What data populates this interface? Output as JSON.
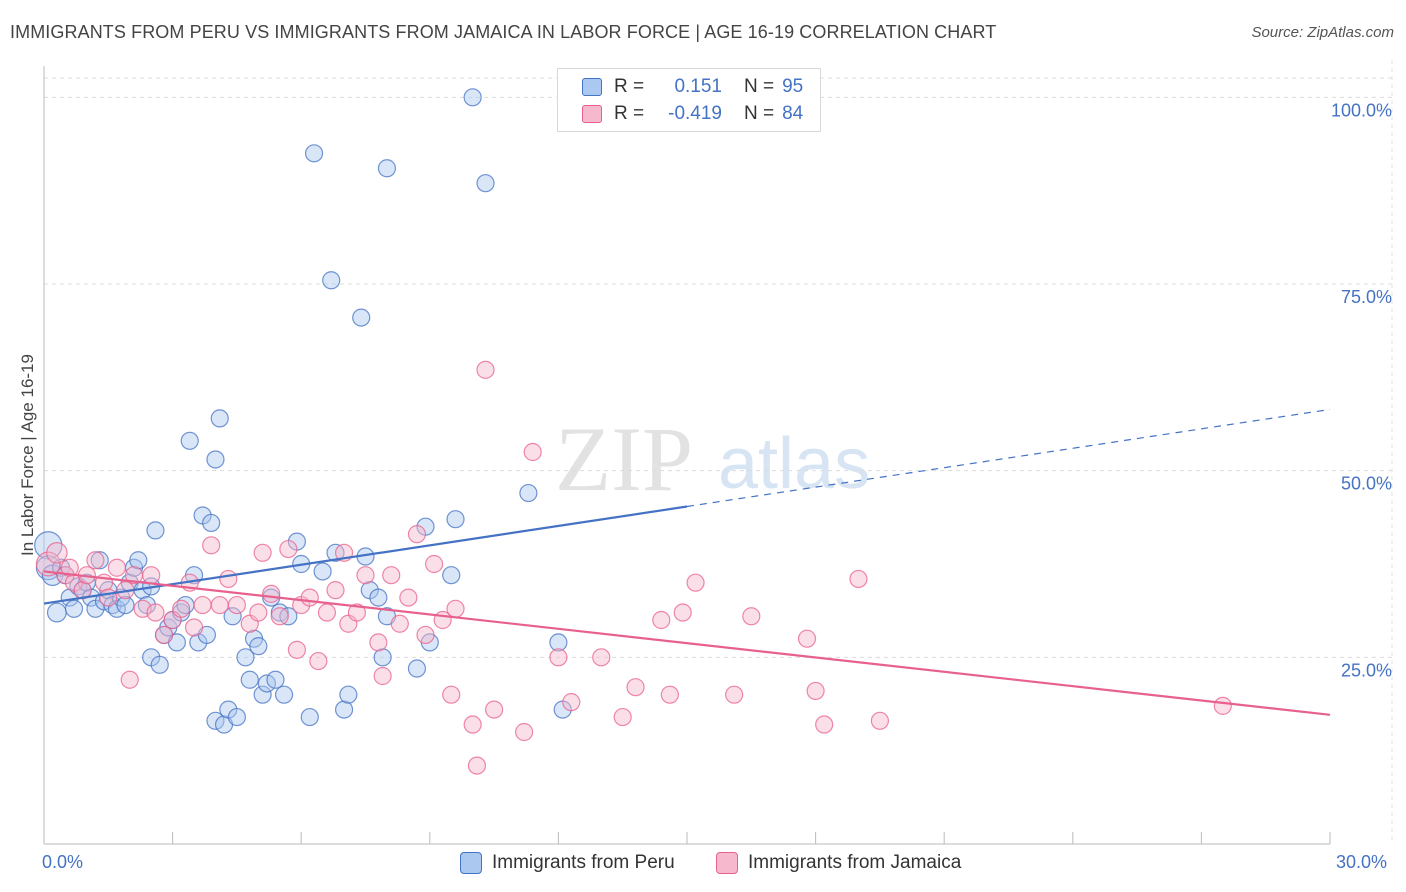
{
  "title": "IMMIGRANTS FROM PERU VS IMMIGRANTS FROM JAMAICA IN LABOR FORCE | AGE 16-19 CORRELATION CHART",
  "source": "Source: ZipAtlas.com",
  "watermark": {
    "zip": "ZIP",
    "atlas": "atlas"
  },
  "legend_top": {
    "rows": [
      {
        "r_label": "R =",
        "r_value": "0.151",
        "n_label": "N =",
        "n_value": "95"
      },
      {
        "r_label": "R =",
        "r_value": "-0.419",
        "n_label": "N =",
        "n_value": "84"
      }
    ]
  },
  "x_axis": {
    "min_label": "0.0%",
    "max_label": "30.0%"
  },
  "chart_data": {
    "type": "scatter",
    "title": "IMMIGRANTS FROM PERU VS IMMIGRANTS FROM JAMAICA IN LABOR FORCE | AGE 16-19 CORRELATION CHART",
    "xlabel": "",
    "ylabel": "In Labor Force | Age 16-19",
    "xlim": [
      0,
      30
    ],
    "ylim": [
      0,
      105
    ],
    "y_ticks": [
      {
        "value": 25,
        "label": "25.0%"
      },
      {
        "value": 50,
        "label": "50.0%"
      },
      {
        "value": 75,
        "label": "75.0%"
      },
      {
        "value": 100,
        "label": "100.0%"
      }
    ],
    "x_ticks": [
      0,
      3,
      6,
      9,
      12,
      15,
      18,
      21,
      24,
      27,
      30
    ],
    "series": [
      {
        "name": "Immigrants from Peru",
        "color": "#4472c4",
        "fill": "#aac8f0",
        "r": 0.151,
        "n": 95,
        "trend": {
          "x0": 0,
          "y0": 32.2,
          "x1": 15,
          "y1": 45.2,
          "dash_x1": 30,
          "dash_y1": 58.2
        },
        "points": [
          [
            0.1,
            40,
            1.6
          ],
          [
            0.1,
            37,
            1.4
          ],
          [
            0.2,
            36,
            1.2
          ],
          [
            0.3,
            31,
            1.1
          ],
          [
            0.4,
            37,
            1
          ],
          [
            0.5,
            36,
            1
          ],
          [
            0.6,
            33,
            1
          ],
          [
            0.7,
            31.5,
            1
          ],
          [
            0.8,
            34.5,
            1
          ],
          [
            0.9,
            34,
            1
          ],
          [
            1.0,
            35,
            1
          ],
          [
            1.1,
            33,
            1
          ],
          [
            1.2,
            31.5,
            1
          ],
          [
            1.3,
            38,
            1
          ],
          [
            1.4,
            32.5,
            1
          ],
          [
            1.5,
            34,
            1
          ],
          [
            1.6,
            32,
            1
          ],
          [
            1.7,
            31.5,
            1
          ],
          [
            1.8,
            33,
            1
          ],
          [
            1.9,
            32,
            1
          ],
          [
            2.0,
            35,
            1
          ],
          [
            2.1,
            37,
            1
          ],
          [
            2.2,
            38,
            1
          ],
          [
            2.3,
            34,
            1
          ],
          [
            2.4,
            32,
            1
          ],
          [
            2.5,
            34.5,
            1
          ],
          [
            2.5,
            25,
            1
          ],
          [
            2.6,
            42,
            1
          ],
          [
            2.7,
            24,
            1
          ],
          [
            2.8,
            28,
            1
          ],
          [
            2.9,
            29,
            1
          ],
          [
            3.0,
            30,
            1
          ],
          [
            3.1,
            27,
            1
          ],
          [
            3.2,
            31,
            1
          ],
          [
            3.3,
            32,
            1
          ],
          [
            3.4,
            54,
            1
          ],
          [
            3.5,
            36,
            1
          ],
          [
            3.6,
            27,
            1
          ],
          [
            3.7,
            44,
            1
          ],
          [
            3.8,
            28,
            1
          ],
          [
            3.9,
            43,
            1
          ],
          [
            4.0,
            51.5,
            1
          ],
          [
            4.0,
            16.5,
            1
          ],
          [
            4.1,
            57,
            1
          ],
          [
            4.2,
            16,
            1
          ],
          [
            4.3,
            18,
            1
          ],
          [
            4.4,
            30.5,
            1
          ],
          [
            4.5,
            17,
            1
          ],
          [
            4.7,
            25,
            1
          ],
          [
            4.8,
            22,
            1
          ],
          [
            4.9,
            27.5,
            1
          ],
          [
            5.0,
            26.5,
            1
          ],
          [
            5.1,
            20,
            1
          ],
          [
            5.2,
            21.5,
            1
          ],
          [
            5.3,
            33,
            1
          ],
          [
            5.4,
            22,
            1
          ],
          [
            5.5,
            31,
            1
          ],
          [
            5.6,
            20,
            1
          ],
          [
            5.7,
            30.5,
            1
          ],
          [
            5.9,
            40.5,
            1
          ],
          [
            6.0,
            37.5,
            1
          ],
          [
            6.2,
            17,
            1
          ],
          [
            6.3,
            92.5,
            1
          ],
          [
            6.5,
            36.5,
            1
          ],
          [
            6.7,
            75.5,
            1
          ],
          [
            6.8,
            39,
            1
          ],
          [
            7.0,
            18,
            1
          ],
          [
            7.1,
            20,
            1
          ],
          [
            7.4,
            70.5,
            1
          ],
          [
            7.5,
            38.5,
            1
          ],
          [
            7.6,
            34,
            1
          ],
          [
            7.8,
            33,
            1
          ],
          [
            7.9,
            25,
            1
          ],
          [
            8.0,
            30.5,
            1
          ],
          [
            8.0,
            90.5,
            1
          ],
          [
            8.7,
            23.5,
            1
          ],
          [
            8.9,
            42.5,
            1
          ],
          [
            9.0,
            27,
            1
          ],
          [
            9.5,
            36,
            1
          ],
          [
            9.6,
            43.5,
            1
          ],
          [
            10.0,
            100,
            1
          ],
          [
            10.3,
            88.5,
            1
          ],
          [
            11.3,
            47,
            1
          ],
          [
            12.0,
            27,
            1
          ],
          [
            12.1,
            18,
            1
          ]
        ]
      },
      {
        "name": "Immigrants from Jamaica",
        "color": "#e8608c",
        "fill": "#f6b8cc",
        "r": -0.419,
        "n": 84,
        "trend": {
          "x0": 0,
          "y0": 36.5,
          "x1": 30,
          "y1": 17.3
        },
        "points": [
          [
            0.1,
            37.5,
            1.4
          ],
          [
            0.3,
            39,
            1.2
          ],
          [
            0.5,
            36,
            1
          ],
          [
            0.6,
            37,
            1
          ],
          [
            0.7,
            35,
            1
          ],
          [
            0.9,
            34,
            1
          ],
          [
            1.0,
            36,
            1
          ],
          [
            1.2,
            38,
            1
          ],
          [
            1.4,
            35,
            1
          ],
          [
            1.5,
            33,
            1
          ],
          [
            1.7,
            37,
            1
          ],
          [
            1.9,
            34,
            1
          ],
          [
            2.0,
            22,
            1
          ],
          [
            2.1,
            36,
            1
          ],
          [
            2.3,
            31.5,
            1
          ],
          [
            2.5,
            36,
            1
          ],
          [
            2.6,
            31,
            1
          ],
          [
            2.8,
            28,
            1
          ],
          [
            3.0,
            30,
            1
          ],
          [
            3.2,
            31.5,
            1
          ],
          [
            3.4,
            35,
            1
          ],
          [
            3.5,
            29,
            1
          ],
          [
            3.7,
            32,
            1
          ],
          [
            3.9,
            40,
            1
          ],
          [
            4.1,
            32,
            1
          ],
          [
            4.3,
            35.5,
            1
          ],
          [
            4.5,
            32,
            1
          ],
          [
            4.8,
            29.5,
            1
          ],
          [
            5.0,
            31,
            1
          ],
          [
            5.1,
            39,
            1
          ],
          [
            5.3,
            33.5,
            1
          ],
          [
            5.5,
            30.5,
            1
          ],
          [
            5.7,
            39.5,
            1
          ],
          [
            5.9,
            26,
            1
          ],
          [
            6.0,
            32,
            1
          ],
          [
            6.2,
            33,
            1
          ],
          [
            6.4,
            24.5,
            1
          ],
          [
            6.6,
            31,
            1
          ],
          [
            6.8,
            34,
            1
          ],
          [
            7.0,
            39,
            1
          ],
          [
            7.1,
            29.5,
            1
          ],
          [
            7.3,
            31,
            1
          ],
          [
            7.5,
            36,
            1
          ],
          [
            7.8,
            27,
            1
          ],
          [
            7.9,
            22.5,
            1
          ],
          [
            8.1,
            36,
            1
          ],
          [
            8.3,
            29.5,
            1
          ],
          [
            8.5,
            33,
            1
          ],
          [
            8.7,
            41.5,
            1
          ],
          [
            8.9,
            28,
            1
          ],
          [
            9.1,
            37.5,
            1
          ],
          [
            9.3,
            30,
            1
          ],
          [
            9.5,
            20,
            1
          ],
          [
            9.6,
            31.5,
            1
          ],
          [
            10.0,
            16,
            1
          ],
          [
            10.1,
            10.5,
            1
          ],
          [
            10.3,
            63.5,
            1
          ],
          [
            10.5,
            18,
            1
          ],
          [
            11.2,
            15,
            1
          ],
          [
            11.4,
            52.5,
            1
          ],
          [
            12.0,
            25,
            1
          ],
          [
            12.3,
            19,
            1
          ],
          [
            13.0,
            25,
            1
          ],
          [
            13.5,
            17,
            1
          ],
          [
            13.8,
            21,
            1
          ],
          [
            14.4,
            30,
            1
          ],
          [
            14.6,
            20,
            1
          ],
          [
            14.9,
            31,
            1
          ],
          [
            15.2,
            35,
            1
          ],
          [
            16.1,
            20,
            1
          ],
          [
            16.5,
            30.5,
            1
          ],
          [
            17.8,
            27.5,
            1
          ],
          [
            18.0,
            20.5,
            1
          ],
          [
            18.2,
            16,
            1
          ],
          [
            19.0,
            35.5,
            1
          ],
          [
            19.5,
            16.5,
            1
          ],
          [
            27.5,
            18.5,
            1
          ]
        ]
      }
    ]
  }
}
